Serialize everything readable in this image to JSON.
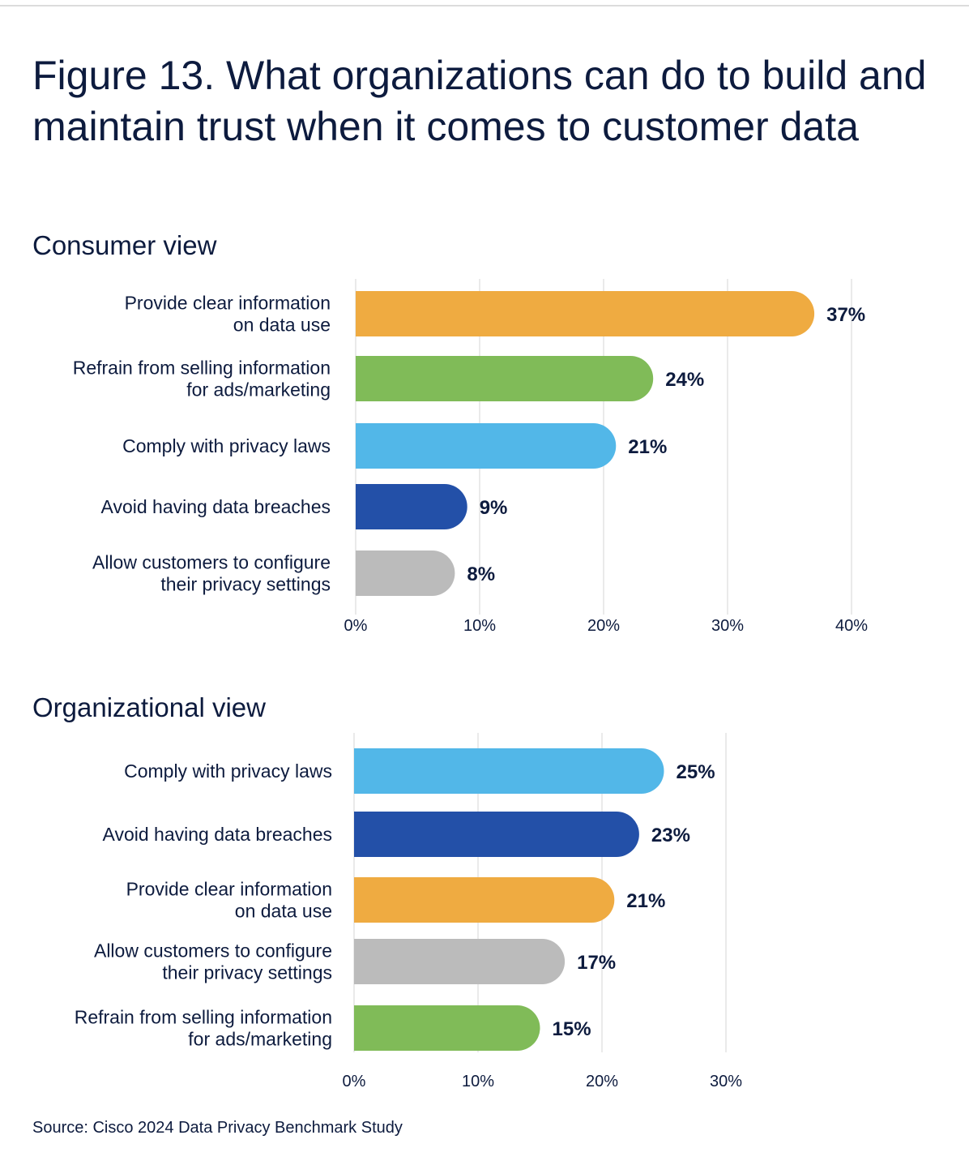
{
  "figure_title": "Figure 13. What organizations can do to build and maintain trust when it comes to customer data",
  "source": "Source: Cisco 2024 Data Privacy Benchmark Study",
  "colors": {
    "orange": "#efab41",
    "green": "#80bb58",
    "light_blue": "#52b7e8",
    "dark_blue": "#2350a8",
    "gray": "#bbbbbb",
    "grid": "#e3e3e3",
    "text": "#0d1b3e"
  },
  "chart_data": [
    {
      "type": "bar",
      "orientation": "horizontal",
      "title": "Consumer view",
      "categories": [
        [
          "Provide clear information",
          "on data use"
        ],
        [
          "Refrain from selling information",
          "for ads/marketing"
        ],
        [
          "Comply with privacy laws"
        ],
        [
          "Avoid having data breaches"
        ],
        [
          "Allow customers to configure",
          "their privacy settings"
        ]
      ],
      "values": [
        37,
        24,
        21,
        9,
        8
      ],
      "value_labels": [
        "37%",
        "24%",
        "21%",
        "9%",
        "8%"
      ],
      "bar_colors": [
        "#efab41",
        "#80bb58",
        "#52b7e8",
        "#2350a8",
        "#bbbbbb"
      ],
      "xlim": [
        0,
        40
      ],
      "xticks": [
        0,
        10,
        20,
        30,
        40
      ],
      "xtick_labels": [
        "0%",
        "10%",
        "20%",
        "30%",
        "40%"
      ],
      "grid": true
    },
    {
      "type": "bar",
      "orientation": "horizontal",
      "title": "Organizational view",
      "categories": [
        [
          "Comply with privacy laws"
        ],
        [
          "Avoid having data breaches"
        ],
        [
          "Provide clear information",
          "on data use"
        ],
        [
          "Allow customers to configure",
          "their privacy settings"
        ],
        [
          "Refrain from selling information",
          "for ads/marketing"
        ]
      ],
      "values": [
        25,
        23,
        21,
        17,
        15
      ],
      "value_labels": [
        "25%",
        "23%",
        "21%",
        "17%",
        "15%"
      ],
      "bar_colors": [
        "#52b7e8",
        "#2350a8",
        "#efab41",
        "#bbbbbb",
        "#80bb58"
      ],
      "xlim": [
        0,
        30
      ],
      "xticks": [
        0,
        10,
        20,
        30
      ],
      "xtick_labels": [
        "0%",
        "10%",
        "20%",
        "30%"
      ],
      "grid": true
    }
  ]
}
